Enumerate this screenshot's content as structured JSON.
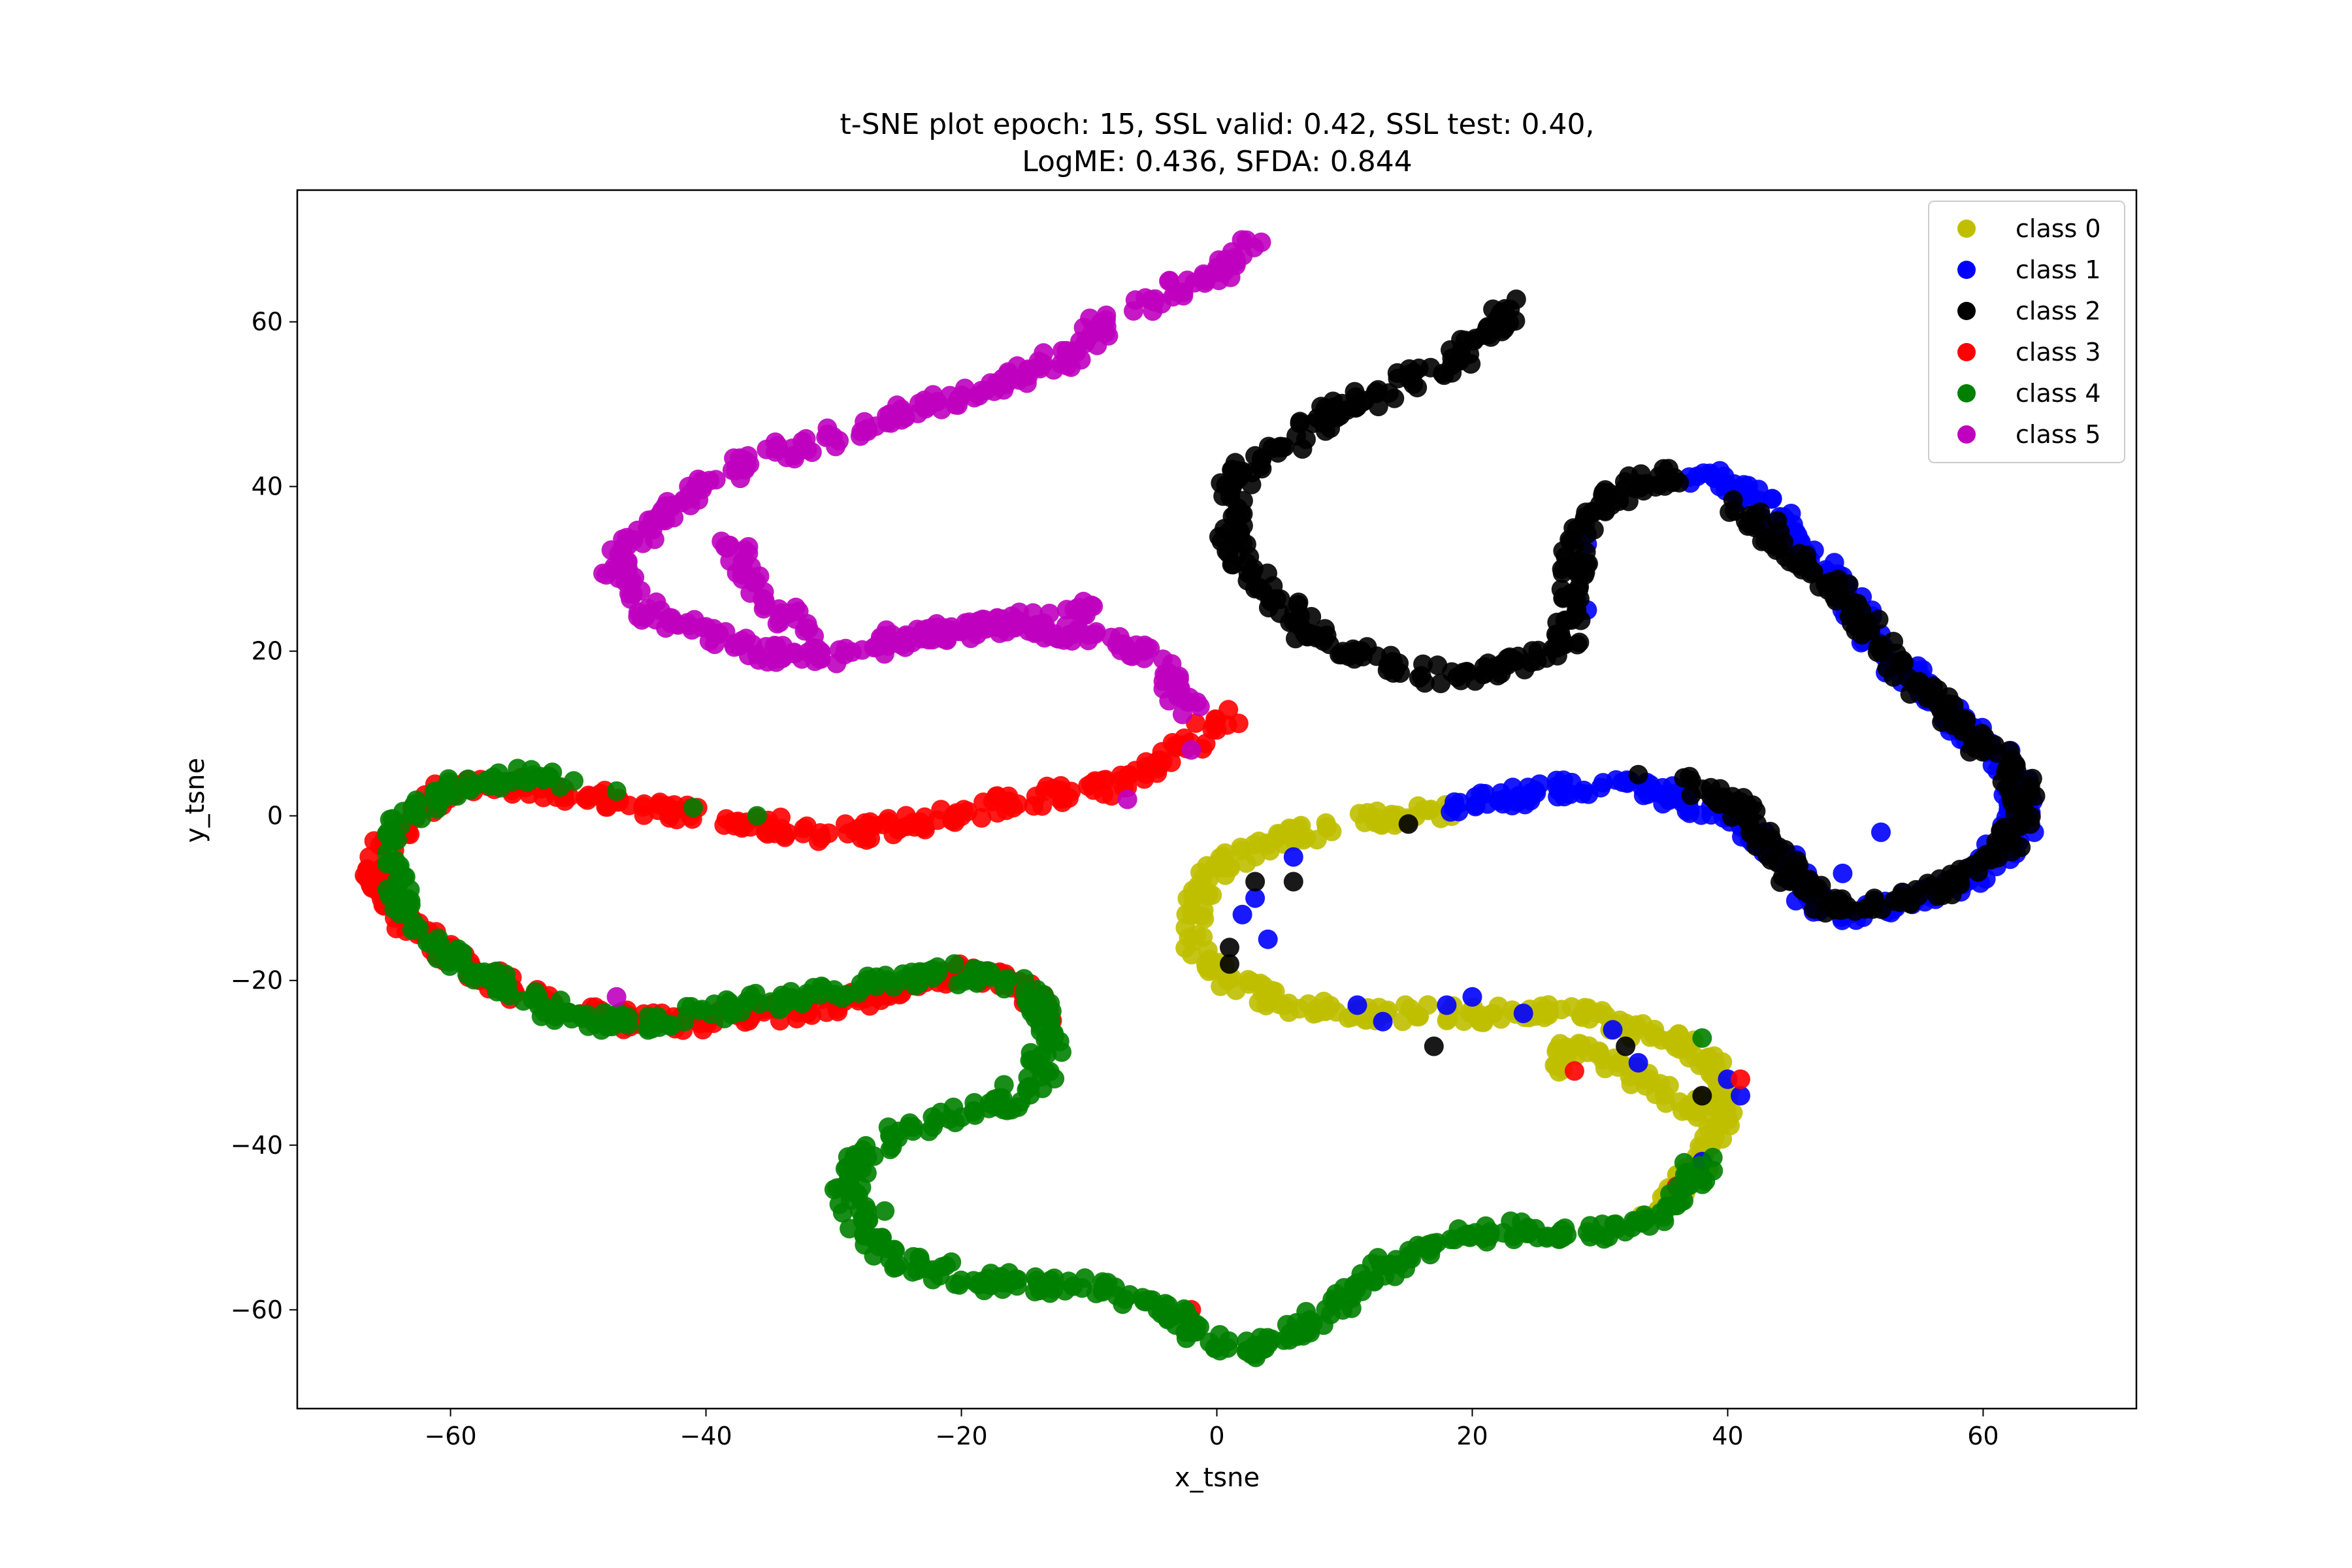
{
  "chart_data": {
    "type": "scatter",
    "title": [
      "t-SNE plot epoch: 15, SSL valid: 0.42, SSL test: 0.40,",
      "LogME: 0.436, SFDA: 0.844"
    ],
    "xlabel": "x_tsne",
    "ylabel": "y_tsne",
    "xlim": [
      -72,
      72
    ],
    "ylim": [
      -72,
      76
    ],
    "xticks": [
      -60,
      -40,
      -20,
      0,
      20,
      40,
      60
    ],
    "yticks": [
      -60,
      -40,
      -20,
      0,
      20,
      40,
      60
    ],
    "tick_labels_x": [
      "−60",
      "−40",
      "−20",
      "0",
      "20",
      "40",
      "60"
    ],
    "tick_labels_y": [
      "−60",
      "−40",
      "−20",
      "0",
      "20",
      "40",
      "60"
    ],
    "grid": false,
    "legend_position": "top-right",
    "series": [
      {
        "name": "class 0",
        "color": "#bfbf00",
        "path": [
          [
            -2,
            -14
          ],
          [
            -1,
            -8
          ],
          [
            1,
            -5
          ],
          [
            5,
            -3
          ],
          [
            10,
            -1
          ],
          [
            15,
            0
          ],
          [
            18,
            0.5
          ]
        ],
        "extra_path": [
          [
            -2,
            -14
          ],
          [
            0,
            -19
          ],
          [
            4,
            -22
          ],
          [
            10,
            -24
          ],
          [
            16,
            -24
          ],
          [
            22,
            -24
          ],
          [
            28,
            -24
          ],
          [
            33,
            -26
          ],
          [
            37,
            -28
          ],
          [
            39,
            -31
          ],
          [
            40,
            -34
          ],
          [
            39,
            -38
          ],
          [
            38,
            -42
          ],
          [
            36,
            -45
          ],
          [
            34,
            -48
          ]
        ],
        "extra_path2": [
          [
            26,
            -31
          ],
          [
            28,
            -28
          ],
          [
            31,
            -30
          ],
          [
            35,
            -33
          ],
          [
            38,
            -36
          ]
        ]
      },
      {
        "name": "class 1",
        "color": "#0000ff",
        "path": [
          [
            18,
            1
          ],
          [
            24,
            2.5
          ],
          [
            30,
            4
          ],
          [
            35,
            3
          ],
          [
            40,
            0
          ],
          [
            45,
            -6
          ],
          [
            47,
            -11
          ],
          [
            50,
            -12
          ],
          [
            55,
            -10
          ],
          [
            59,
            -8
          ],
          [
            62,
            -3
          ],
          [
            63,
            2
          ],
          [
            62,
            6
          ],
          [
            59,
            10
          ],
          [
            56,
            14
          ],
          [
            53,
            19
          ],
          [
            50,
            25
          ],
          [
            47,
            31
          ],
          [
            44,
            36
          ],
          [
            41,
            40
          ],
          [
            37,
            41.5
          ]
        ],
        "scatter_points": [
          [
            3,
            -10
          ],
          [
            4,
            -15
          ],
          [
            2,
            -12
          ],
          [
            6,
            -5
          ],
          [
            11,
            -23
          ],
          [
            13,
            -25
          ],
          [
            18,
            -23
          ],
          [
            20,
            -22
          ],
          [
            24,
            -24
          ],
          [
            31,
            -26
          ],
          [
            33,
            -30
          ],
          [
            38,
            -42
          ],
          [
            38,
            -44
          ],
          [
            40,
            -32
          ],
          [
            41,
            -34
          ],
          [
            45,
            -7
          ],
          [
            49,
            -7
          ],
          [
            29,
            33
          ],
          [
            28,
            30
          ],
          [
            29,
            25
          ],
          [
            52,
            -2
          ],
          [
            61,
            -4
          ],
          [
            62,
            -1
          ],
          [
            64,
            -2
          ]
        ]
      },
      {
        "name": "class 2",
        "color": "#000000",
        "path": [
          [
            23.5,
            62
          ],
          [
            21,
            58
          ],
          [
            18,
            55
          ],
          [
            15,
            53
          ],
          [
            11,
            50
          ],
          [
            8,
            48
          ],
          [
            5,
            45
          ],
          [
            2,
            42
          ],
          [
            1,
            38
          ],
          [
            1,
            34
          ],
          [
            2,
            30
          ],
          [
            4,
            27
          ],
          [
            6,
            24
          ],
          [
            8,
            21
          ],
          [
            12,
            19
          ],
          [
            17,
            17
          ],
          [
            22,
            18
          ],
          [
            25,
            19
          ],
          [
            27,
            21
          ],
          [
            28,
            24
          ],
          [
            28,
            28
          ],
          [
            28,
            33
          ],
          [
            29,
            36
          ],
          [
            31,
            39
          ],
          [
            34,
            41
          ],
          [
            37,
            41.5
          ]
        ],
        "path2": [
          [
            37,
            4
          ],
          [
            40,
            2
          ],
          [
            42,
            -1
          ],
          [
            44,
            -5
          ],
          [
            46,
            -9
          ],
          [
            48,
            -11
          ],
          [
            51,
            -11
          ],
          [
            55,
            -10
          ],
          [
            58,
            -8
          ],
          [
            61,
            -5
          ],
          [
            63,
            0
          ],
          [
            63,
            3
          ],
          [
            62,
            6
          ],
          [
            59,
            10
          ],
          [
            57,
            13
          ],
          [
            54,
            17
          ],
          [
            51,
            23
          ],
          [
            48,
            28
          ],
          [
            45,
            32
          ],
          [
            41,
            38
          ]
        ],
        "scatter_points": [
          [
            1,
            -16
          ],
          [
            1,
            -18
          ],
          [
            3,
            -8
          ],
          [
            6,
            -8
          ],
          [
            15,
            -1
          ],
          [
            17,
            -28
          ],
          [
            32,
            -28
          ],
          [
            38,
            -34
          ],
          [
            33,
            5
          ],
          [
            41,
            0
          ]
        ]
      },
      {
        "name": "class 3",
        "color": "#ff0000",
        "path": [
          [
            1,
            12
          ],
          [
            -3,
            8
          ],
          [
            -6,
            5
          ],
          [
            -10,
            3
          ],
          [
            -15,
            2
          ],
          [
            -20,
            0
          ],
          [
            -24,
            -1
          ],
          [
            -28,
            -2
          ],
          [
            -32,
            -2
          ],
          [
            -36,
            -1
          ],
          [
            -40,
            0
          ],
          [
            -44,
            1
          ],
          [
            -48,
            2
          ],
          [
            -52,
            3
          ],
          [
            -56,
            4
          ],
          [
            -60,
            3
          ],
          [
            -63,
            0
          ],
          [
            -65,
            -4
          ],
          [
            -66,
            -8
          ],
          [
            -64,
            -12
          ],
          [
            -61,
            -16
          ],
          [
            -58,
            -19
          ],
          [
            -54,
            -22
          ],
          [
            -50,
            -24
          ],
          [
            -45,
            -25
          ],
          [
            -40,
            -25
          ],
          [
            -35,
            -24
          ],
          [
            -30,
            -23
          ],
          [
            -25,
            -21
          ],
          [
            -20,
            -19
          ],
          [
            -16,
            -20
          ],
          [
            -13,
            -24
          ]
        ],
        "scatter_points": [
          [
            -2,
            -60
          ],
          [
            28,
            -31
          ],
          [
            41,
            -32
          ],
          [
            36,
            -45
          ],
          [
            -21,
            -20
          ],
          [
            -17,
            -19
          ]
        ]
      },
      {
        "name": "class 4",
        "color": "#008000",
        "path": [
          [
            -65,
            -5
          ],
          [
            -64,
            -10
          ],
          [
            -62,
            -14
          ],
          [
            -60,
            -17
          ],
          [
            -57,
            -20
          ],
          [
            -53,
            -23
          ],
          [
            -49,
            -25
          ],
          [
            -45,
            -25
          ],
          [
            -41,
            -24
          ],
          [
            -37,
            -23
          ],
          [
            -33,
            -22
          ],
          [
            -29,
            -21
          ],
          [
            -25,
            -20
          ],
          [
            -21,
            -19
          ],
          [
            -17,
            -20
          ],
          [
            -14,
            -23
          ],
          [
            -13,
            -27
          ],
          [
            -14,
            -32
          ],
          [
            -17,
            -35
          ],
          [
            -21,
            -37
          ],
          [
            -25,
            -39
          ],
          [
            -28,
            -41
          ],
          [
            -29,
            -45
          ],
          [
            -28,
            -50
          ],
          [
            -25,
            -54
          ],
          [
            -20,
            -56
          ],
          [
            -15,
            -57
          ],
          [
            -10,
            -57
          ],
          [
            -6,
            -59
          ],
          [
            -3,
            -61
          ],
          [
            0,
            -64
          ],
          [
            3,
            -65
          ],
          [
            6,
            -63
          ],
          [
            9,
            -60
          ],
          [
            11,
            -57
          ],
          [
            13,
            -55
          ],
          [
            16,
            -53
          ],
          [
            20,
            -51
          ],
          [
            24,
            -50
          ],
          [
            28,
            -51
          ],
          [
            32,
            -50
          ],
          [
            35,
            -48
          ],
          [
            37,
            -45
          ],
          [
            38,
            -42
          ]
        ],
        "path2": [
          [
            -65,
            -3
          ],
          [
            -63,
            0
          ],
          [
            -60,
            3
          ],
          [
            -57,
            4.5
          ],
          [
            -53,
            5
          ],
          [
            -51,
            4
          ]
        ],
        "scatter_points": [
          [
            -47,
            3
          ],
          [
            -41,
            1
          ],
          [
            -36,
            0
          ],
          [
            -26,
            -48
          ],
          [
            38,
            -27
          ]
        ]
      },
      {
        "name": "class 5",
        "color": "#bf00bf",
        "path": [
          [
            -2,
            13
          ],
          [
            -3,
            16
          ],
          [
            -5,
            19
          ],
          [
            -8,
            21
          ],
          [
            -12,
            22
          ],
          [
            -16,
            23
          ],
          [
            -20,
            23
          ],
          [
            -24,
            22
          ],
          [
            -28,
            20
          ],
          [
            -32,
            19
          ],
          [
            -36,
            20
          ],
          [
            -40,
            22
          ],
          [
            -44,
            24
          ],
          [
            -46,
            27
          ],
          [
            -47,
            30
          ],
          [
            -46,
            33
          ],
          [
            -44,
            36
          ],
          [
            -41,
            39
          ],
          [
            -38,
            42
          ],
          [
            -35,
            44
          ],
          [
            -32,
            45
          ],
          [
            -28,
            47
          ],
          [
            -24,
            49
          ],
          [
            -20,
            51
          ],
          [
            -16,
            53
          ],
          [
            -13,
            55
          ],
          [
            -10,
            57
          ],
          [
            -9,
            61
          ]
        ],
        "path2": [
          [
            -10,
            25
          ],
          [
            -14,
            24
          ],
          [
            -18,
            23
          ],
          [
            -22,
            22
          ],
          [
            -26,
            21
          ]
        ],
        "path3": [
          [
            -6,
            62
          ],
          [
            -3,
            64
          ],
          [
            0,
            66
          ],
          [
            2,
            68
          ],
          [
            3,
            70
          ]
        ],
        "path4": [
          [
            -38,
            34
          ],
          [
            -37,
            30
          ],
          [
            -35,
            26
          ],
          [
            -32,
            22
          ]
        ],
        "scatter_points": [
          [
            -47,
            -22
          ],
          [
            -7,
            2
          ],
          [
            -2,
            8
          ]
        ]
      }
    ]
  }
}
